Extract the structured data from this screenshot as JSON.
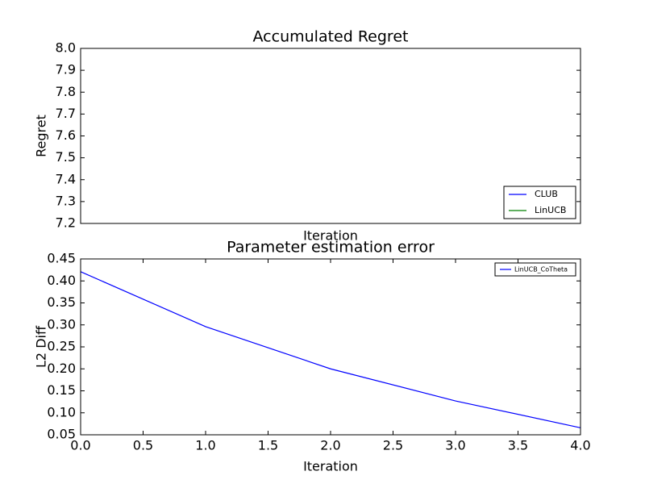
{
  "chart_data": [
    {
      "type": "line",
      "title": "Accumulated Regret",
      "xlabel": "Iteration",
      "ylabel": "Regret",
      "x": [],
      "series": [
        {
          "name": "CLUB",
          "color": "#0000ff",
          "values": []
        },
        {
          "name": "LinUCB",
          "color": "#008000",
          "values": []
        }
      ],
      "ylim": [
        7.2,
        8.0
      ],
      "yticks": [
        7.2,
        7.3,
        7.4,
        7.5,
        7.6,
        7.7,
        7.8,
        7.9,
        {
          "value": 8.0,
          "label": "8.0"
        }
      ],
      "legend": "lower right"
    },
    {
      "type": "line",
      "title": "Parameter estimation error",
      "xlabel": "Iteration",
      "ylabel": "L2 Diff",
      "x": [
        0,
        1,
        2,
        3,
        4
      ],
      "series": [
        {
          "name": "LinUCB_CoTheta",
          "color": "#0000ff",
          "values": [
            0.421,
            0.296,
            0.2,
            0.127,
            0.066
          ]
        }
      ],
      "xlim": [
        0,
        4
      ],
      "xticks": [
        {
          "value": 0,
          "label": "0.0"
        },
        0.5,
        {
          "value": 1,
          "label": "1.0"
        },
        1.5,
        {
          "value": 2,
          "label": "2.0"
        },
        2.5,
        {
          "value": 3,
          "label": "3.0"
        },
        3.5,
        {
          "value": 4,
          "label": "4.0"
        }
      ],
      "ylim": [
        0.05,
        0.45
      ],
      "yticks": [
        0.05,
        {
          "value": 0.1,
          "label": "0.10"
        },
        0.15,
        {
          "value": 0.2,
          "label": "0.20"
        },
        0.25,
        {
          "value": 0.3,
          "label": "0.30"
        },
        0.35,
        {
          "value": 0.4,
          "label": "0.40"
        },
        0.45
      ],
      "legend": "upper right"
    }
  ]
}
